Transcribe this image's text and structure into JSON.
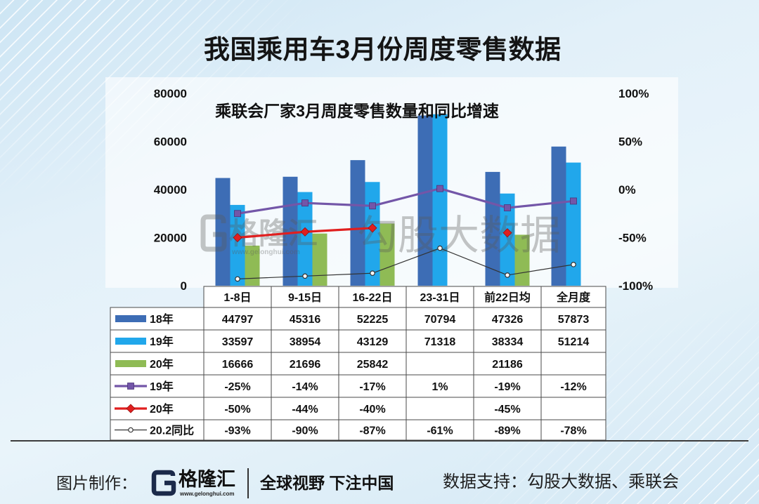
{
  "title": "我国乘用车3月份周度零售数据",
  "watermark": {
    "logo_text": "格隆汇",
    "logo_url": "www.gelonghui.com",
    "text": "勾股大数据"
  },
  "footer": {
    "made_by_label": "图片制作：",
    "logo_text": "格隆汇",
    "logo_url": "www.gelonghui.com",
    "slogan": "全球视野 下注中国",
    "source": "数据支持：勾股大数据、乘联会"
  },
  "chart_data": {
    "type": "bar",
    "title": "乘联会厂家3月周度零售数量和同比增速",
    "categories": [
      "1-8日",
      "9-15日",
      "16-22日",
      "23-31日",
      "前22日均",
      "全月度"
    ],
    "ylim": [
      0,
      80000
    ],
    "y_ticks": [
      80000,
      60000,
      40000,
      20000,
      0
    ],
    "y2lim": [
      -100,
      100
    ],
    "y2_ticks": [
      "100%",
      "50%",
      "0%",
      "-50%",
      "-100%"
    ],
    "grid": false,
    "legend": "table",
    "bar_series": [
      {
        "name": "18年",
        "color": "#3d6db5",
        "values": [
          44797,
          45316,
          52225,
          70794,
          47326,
          57873
        ]
      },
      {
        "name": "19年",
        "color": "#21a7eb",
        "values": [
          33597,
          38954,
          43129,
          71318,
          38334,
          51214
        ]
      },
      {
        "name": "20年",
        "color": "#8fbb55",
        "values": [
          16666,
          21696,
          25842,
          null,
          21186,
          null
        ]
      }
    ],
    "line_series": [
      {
        "name": "19年",
        "color": "#7356a8",
        "marker": "square",
        "values": [
          -25,
          -14,
          -17,
          1,
          -19,
          -12
        ]
      },
      {
        "name": "20年",
        "color": "#e01f1f",
        "marker": "diamond",
        "values": [
          -50,
          -44,
          -40,
          null,
          -45,
          null
        ]
      },
      {
        "name": "20.2同比",
        "color": "#333333",
        "marker": "circle",
        "values": [
          -93,
          -90,
          -87,
          -61,
          -89,
          -78
        ]
      }
    ],
    "data_table": [
      [
        "44797",
        "45316",
        "52225",
        "70794",
        "47326",
        "57873"
      ],
      [
        "33597",
        "38954",
        "43129",
        "71318",
        "38334",
        "51214"
      ],
      [
        "16666",
        "21696",
        "25842",
        null,
        "21186",
        null
      ],
      [
        "-25%",
        "-14%",
        "-17%",
        "1%",
        "-19%",
        "-12%"
      ],
      [
        "-50%",
        "-44%",
        "-40%",
        null,
        "-45%",
        null
      ],
      [
        "-93%",
        "-90%",
        "-87%",
        "-61%",
        "-89%",
        "-78%"
      ]
    ]
  }
}
